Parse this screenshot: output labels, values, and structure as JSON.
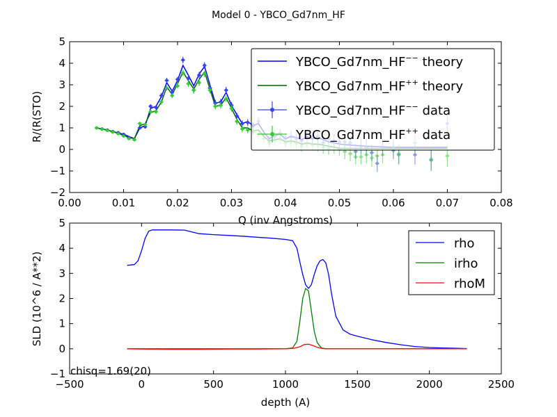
{
  "figure_title": "Model 0 - YBCO_Gd7nm_HF",
  "chart_data": [
    {
      "type": "line",
      "title": "",
      "xlabel": "Q (inv Angstroms)",
      "ylabel": "R/(R(STO)",
      "xlim": [
        0.0,
        0.08
      ],
      "ylim": [
        -2,
        5
      ],
      "xticks": [
        "0.00",
        "0.01",
        "0.02",
        "0.03",
        "0.04",
        "0.05",
        "0.06",
        "0.07",
        "0.08"
      ],
      "yticks": [
        "−2",
        "−1",
        "0",
        "1",
        "2",
        "3",
        "4",
        "5"
      ],
      "legend_position": "top-right",
      "legend": [
        {
          "base": "YBCO_Gd7nm_HF",
          "sup": "−−",
          "suffix": " theory",
          "color": "#0000ff",
          "kind": "line"
        },
        {
          "base": "YBCO_Gd7nm_HF",
          "sup": "++",
          "suffix": " theory",
          "color": "#006400",
          "kind": "line"
        },
        {
          "base": "YBCO_Gd7nm_HF",
          "sup": "−−",
          "suffix": " data",
          "color": "#3344ee",
          "kind": "errorbar"
        },
        {
          "base": "YBCO_Gd7nm_HF",
          "sup": "++",
          "suffix": " data",
          "color": "#33cc33",
          "kind": "errorbar"
        }
      ],
      "series": [
        {
          "name": "YBCO_Gd7nm_HF−− theory",
          "color": "#0000ff",
          "kind": "line",
          "x": [
            0.005,
            0.006,
            0.007,
            0.008,
            0.009,
            0.01,
            0.011,
            0.012,
            0.013,
            0.014,
            0.015,
            0.016,
            0.017,
            0.018,
            0.019,
            0.02,
            0.021,
            0.022,
            0.023,
            0.024,
            0.025,
            0.026,
            0.027,
            0.028,
            0.029,
            0.03,
            0.031,
            0.032,
            0.033,
            0.034,
            0.035,
            0.036,
            0.037,
            0.038,
            0.039,
            0.04,
            0.041,
            0.042,
            0.043,
            0.044,
            0.045,
            0.046,
            0.047,
            0.048,
            0.049,
            0.05,
            0.052,
            0.055,
            0.06,
            0.065,
            0.07
          ],
          "y": [
            1.0,
            0.95,
            0.9,
            0.83,
            0.77,
            0.7,
            0.6,
            0.5,
            1.0,
            1.1,
            1.9,
            2.0,
            2.45,
            3.1,
            2.7,
            3.2,
            3.9,
            3.45,
            2.95,
            3.5,
            3.85,
            3.0,
            2.15,
            2.2,
            2.65,
            2.05,
            1.6,
            1.2,
            1.3,
            1.1,
            1.2,
            0.8,
            0.5,
            0.65,
            0.7,
            0.5,
            0.6,
            0.55,
            0.45,
            0.6,
            0.5,
            0.55,
            0.45,
            0.35,
            0.3,
            0.25,
            0.2,
            0.15,
            0.1,
            0.1,
            0.1
          ]
        },
        {
          "name": "YBCO_Gd7nm_HF++ theory",
          "color": "#006400",
          "kind": "line",
          "x": [
            0.005,
            0.006,
            0.007,
            0.008,
            0.009,
            0.01,
            0.011,
            0.012,
            0.013,
            0.014,
            0.015,
            0.016,
            0.017,
            0.018,
            0.019,
            0.02,
            0.021,
            0.022,
            0.023,
            0.024,
            0.025,
            0.026,
            0.027,
            0.028,
            0.029,
            0.03,
            0.031,
            0.032,
            0.033,
            0.034,
            0.035,
            0.036,
            0.037,
            0.038,
            0.039,
            0.04,
            0.041,
            0.042,
            0.043,
            0.044,
            0.045,
            0.046,
            0.047,
            0.048,
            0.049,
            0.05,
            0.052,
            0.055,
            0.06,
            0.065,
            0.07
          ],
          "y": [
            1.0,
            0.95,
            0.9,
            0.82,
            0.75,
            0.65,
            0.55,
            0.5,
            1.1,
            1.2,
            1.7,
            1.8,
            2.2,
            2.9,
            2.55,
            3.05,
            3.6,
            3.2,
            2.8,
            3.25,
            3.6,
            2.8,
            2.0,
            2.05,
            2.4,
            1.9,
            1.4,
            1.0,
            1.0,
            0.85,
            0.9,
            0.6,
            0.4,
            0.45,
            0.5,
            0.35,
            0.4,
            0.35,
            0.25,
            0.3,
            0.25,
            0.25,
            0.2,
            0.15,
            0.1,
            0.05,
            0.05,
            0.05,
            0.05,
            0.05,
            0.05
          ]
        },
        {
          "name": "YBCO_Gd7nm_HF−− data",
          "color": "#3344ee",
          "kind": "errorbar",
          "x": [
            0.005,
            0.006,
            0.007,
            0.008,
            0.009,
            0.01,
            0.011,
            0.012,
            0.013,
            0.014,
            0.015,
            0.016,
            0.017,
            0.018,
            0.019,
            0.02,
            0.021,
            0.022,
            0.023,
            0.024,
            0.025,
            0.026,
            0.027,
            0.028,
            0.029,
            0.03,
            0.031,
            0.032,
            0.033,
            0.034,
            0.035,
            0.036,
            0.037,
            0.038,
            0.039,
            0.04,
            0.041,
            0.042,
            0.043,
            0.044,
            0.045,
            0.046,
            0.047,
            0.048,
            0.049,
            0.05,
            0.051,
            0.052,
            0.053,
            0.054,
            0.055,
            0.056,
            0.057,
            0.058,
            0.06,
            0.061,
            0.064,
            0.067,
            0.07
          ],
          "y": [
            1.0,
            0.95,
            0.9,
            0.83,
            0.78,
            0.7,
            0.55,
            0.45,
            1.0,
            1.05,
            2.0,
            1.95,
            2.5,
            3.2,
            2.65,
            3.25,
            4.15,
            3.3,
            2.75,
            3.45,
            3.9,
            2.85,
            2.15,
            2.2,
            2.75,
            2.05,
            1.55,
            1.2,
            1.25,
            1.1,
            1.3,
            0.7,
            0.4,
            0.6,
            0.75,
            0.5,
            0.6,
            0.5,
            0.4,
            0.55,
            0.5,
            0.6,
            0.3,
            0.5,
            0.4,
            0.35,
            0.35,
            0.3,
            -0.1,
            0.15,
            0.1,
            -0.15,
            -0.65,
            0.1,
            -0.05,
            -0.25,
            -0.25,
            -0.5,
            1.2
          ],
          "err": [
            0.03,
            0.03,
            0.03,
            0.03,
            0.03,
            0.04,
            0.05,
            0.05,
            0.08,
            0.08,
            0.1,
            0.1,
            0.12,
            0.12,
            0.12,
            0.12,
            0.15,
            0.15,
            0.15,
            0.15,
            0.15,
            0.15,
            0.15,
            0.15,
            0.15,
            0.15,
            0.15,
            0.15,
            0.15,
            0.15,
            0.2,
            0.2,
            0.2,
            0.2,
            0.2,
            0.2,
            0.25,
            0.25,
            0.25,
            0.25,
            0.25,
            0.3,
            0.3,
            0.3,
            0.3,
            0.3,
            0.35,
            0.35,
            0.35,
            0.35,
            0.4,
            0.4,
            0.4,
            0.4,
            0.4,
            0.45,
            0.45,
            0.5,
            0.5
          ]
        },
        {
          "name": "YBCO_Gd7nm_HF++ data",
          "color": "#33cc33",
          "kind": "errorbar",
          "x": [
            0.005,
            0.006,
            0.007,
            0.008,
            0.009,
            0.01,
            0.011,
            0.012,
            0.013,
            0.014,
            0.015,
            0.016,
            0.017,
            0.018,
            0.019,
            0.02,
            0.021,
            0.022,
            0.023,
            0.024,
            0.025,
            0.026,
            0.027,
            0.028,
            0.029,
            0.03,
            0.031,
            0.032,
            0.033,
            0.034,
            0.035,
            0.036,
            0.037,
            0.038,
            0.039,
            0.04,
            0.041,
            0.042,
            0.043,
            0.044,
            0.045,
            0.046,
            0.047,
            0.048,
            0.049,
            0.05,
            0.051,
            0.052,
            0.053,
            0.054,
            0.055,
            0.056,
            0.057,
            0.058,
            0.06,
            0.061,
            0.064,
            0.067,
            0.07
          ],
          "y": [
            1.0,
            0.93,
            0.88,
            0.8,
            0.73,
            0.62,
            0.5,
            0.45,
            1.2,
            1.15,
            1.75,
            1.75,
            2.2,
            2.85,
            2.5,
            2.95,
            3.55,
            3.05,
            2.75,
            3.1,
            3.5,
            2.75,
            2.0,
            2.05,
            2.35,
            1.9,
            1.3,
            0.95,
            0.9,
            0.85,
            0.7,
            0.5,
            0.3,
            0.4,
            0.45,
            0.3,
            0.35,
            0.3,
            0.15,
            0.25,
            0.2,
            0.2,
            0.1,
            0.05,
            0.1,
            0.0,
            -0.1,
            -0.2,
            -0.35,
            -0.35,
            -0.25,
            -0.4,
            -0.3,
            -0.25,
            0.1,
            -0.2,
            0.3,
            -0.45,
            -0.3
          ],
          "err": [
            0.03,
            0.03,
            0.03,
            0.03,
            0.03,
            0.04,
            0.05,
            0.05,
            0.08,
            0.08,
            0.1,
            0.1,
            0.12,
            0.12,
            0.12,
            0.12,
            0.15,
            0.15,
            0.15,
            0.15,
            0.15,
            0.15,
            0.15,
            0.15,
            0.15,
            0.15,
            0.15,
            0.15,
            0.15,
            0.15,
            0.2,
            0.2,
            0.2,
            0.2,
            0.2,
            0.2,
            0.25,
            0.25,
            0.25,
            0.25,
            0.25,
            0.3,
            0.3,
            0.3,
            0.3,
            0.3,
            0.35,
            0.35,
            0.35,
            0.35,
            0.4,
            0.4,
            0.4,
            0.4,
            0.4,
            0.45,
            0.45,
            0.5,
            0.5
          ]
        }
      ]
    },
    {
      "type": "line",
      "title": "",
      "xlabel": "depth (A)",
      "ylabel": "SLD (10^6 / A**2)",
      "xlim": [
        -500,
        2500
      ],
      "ylim": [
        -1,
        5
      ],
      "xticks": [
        "−500",
        "0",
        "500",
        "1000",
        "1500",
        "2000",
        "2500"
      ],
      "yticks": [
        "−1",
        "0",
        "1",
        "2",
        "3",
        "4",
        "5"
      ],
      "legend_position": "top-right",
      "annotation": "chisq=1.69(20)",
      "series": [
        {
          "name": "rho",
          "color": "#0000ff",
          "x": [
            -100,
            -50,
            -25,
            0,
            25,
            50,
            75,
            100,
            200,
            300,
            350,
            400,
            500,
            600,
            700,
            800,
            900,
            1000,
            1050,
            1080,
            1100,
            1120,
            1140,
            1160,
            1180,
            1200,
            1220,
            1240,
            1260,
            1280,
            1300,
            1320,
            1350,
            1400,
            1450,
            1500,
            1600,
            1700,
            1800,
            1900,
            2000,
            2100,
            2200,
            2260
          ],
          "y": [
            3.32,
            3.35,
            3.5,
            3.9,
            4.4,
            4.68,
            4.73,
            4.73,
            4.73,
            4.72,
            4.65,
            4.58,
            4.54,
            4.51,
            4.48,
            4.44,
            4.4,
            4.35,
            4.3,
            4.0,
            3.45,
            2.95,
            2.55,
            2.4,
            2.55,
            2.95,
            3.3,
            3.5,
            3.55,
            3.42,
            2.95,
            2.2,
            1.3,
            0.75,
            0.58,
            0.5,
            0.36,
            0.25,
            0.16,
            0.09,
            0.05,
            0.03,
            0.02,
            0.01
          ]
        },
        {
          "name": "irho",
          "color": "#008000",
          "x": [
            -100,
            0,
            500,
            1000,
            1050,
            1080,
            1100,
            1120,
            1140,
            1160,
            1180,
            1200,
            1220,
            1250,
            1280,
            2260
          ],
          "y": [
            0.0,
            0.0,
            0.0,
            0.0,
            0.03,
            0.3,
            1.1,
            2.0,
            2.4,
            2.3,
            1.5,
            0.7,
            0.25,
            0.03,
            0.0,
            0.0
          ]
        },
        {
          "name": "rhoM",
          "color": "#ff0000",
          "x": [
            -100,
            0,
            200,
            400,
            600,
            800,
            1000,
            1060,
            1100,
            1130,
            1160,
            1190,
            1220,
            1260,
            1300,
            2260
          ],
          "y": [
            0.0,
            -0.01,
            -0.02,
            -0.02,
            -0.01,
            -0.01,
            0.0,
            0.02,
            0.08,
            0.17,
            0.18,
            0.13,
            0.06,
            0.01,
            0.0,
            0.0
          ]
        }
      ]
    }
  ]
}
